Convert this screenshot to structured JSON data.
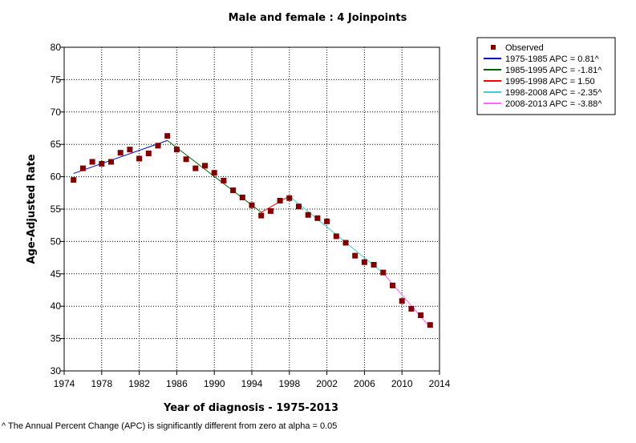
{
  "chart_data": {
    "type": "scatter",
    "title": "Male and female : 4 Joinpoints",
    "xlabel": "Year of diagnosis - 1975-2013",
    "ylabel": "Age-Adjusted Rate",
    "xlim": [
      1974,
      2014
    ],
    "ylim": [
      30,
      80
    ],
    "xticks": [
      1974,
      1978,
      1982,
      1986,
      1990,
      1994,
      1998,
      2002,
      2006,
      2010,
      2014
    ],
    "yticks": [
      30,
      35,
      40,
      45,
      50,
      55,
      60,
      65,
      70,
      75,
      80
    ],
    "grid": true,
    "legend_position": "top-right, outside plot",
    "observed": {
      "name": "Observed",
      "color": "#800000",
      "x": [
        1975,
        1976,
        1977,
        1978,
        1979,
        1980,
        1981,
        1982,
        1983,
        1984,
        1985,
        1986,
        1987,
        1988,
        1989,
        1990,
        1991,
        1992,
        1993,
        1994,
        1995,
        1996,
        1997,
        1998,
        1999,
        2000,
        2001,
        2002,
        2003,
        2004,
        2005,
        2006,
        2007,
        2008,
        2009,
        2010,
        2011,
        2012,
        2013
      ],
      "y": [
        59.5,
        61.3,
        62.3,
        62.0,
        62.3,
        63.7,
        64.2,
        62.8,
        63.6,
        64.8,
        66.3,
        64.2,
        62.7,
        61.3,
        61.7,
        60.6,
        59.4,
        57.9,
        56.8,
        55.6,
        54.0,
        54.7,
        56.3,
        56.7,
        55.4,
        54.1,
        53.6,
        53.1,
        50.8,
        49.8,
        47.8,
        46.8,
        46.4,
        45.2,
        43.2,
        40.8,
        39.6,
        38.6,
        37.1
      ]
    },
    "segments": [
      {
        "label": "1975-1985 APC = 0.81^",
        "color": "#0000cc",
        "x": [
          1975,
          1985
        ],
        "y": [
          60.5,
          65.6
        ]
      },
      {
        "label": "1985-1995 APC = -1.81^",
        "color": "#006400",
        "x": [
          1985,
          1995
        ],
        "y": [
          65.6,
          54.5
        ]
      },
      {
        "label": "1995-1998 APC = 1.50",
        "color": "#ff0000",
        "x": [
          1995,
          1998
        ],
        "y": [
          54.5,
          57.0
        ]
      },
      {
        "label": "1998-2008 APC = -2.35^",
        "color": "#40d0d0",
        "x": [
          1998,
          2008
        ],
        "y": [
          57.0,
          45.1
        ]
      },
      {
        "label": "2008-2013 APC = -3.88^",
        "color": "#ff66ff",
        "x": [
          2008,
          2013
        ],
        "y": [
          45.1,
          36.7
        ]
      }
    ]
  },
  "footnote": "^ The Annual Percent Change (APC) is significantly different from zero at alpha = 0.05"
}
